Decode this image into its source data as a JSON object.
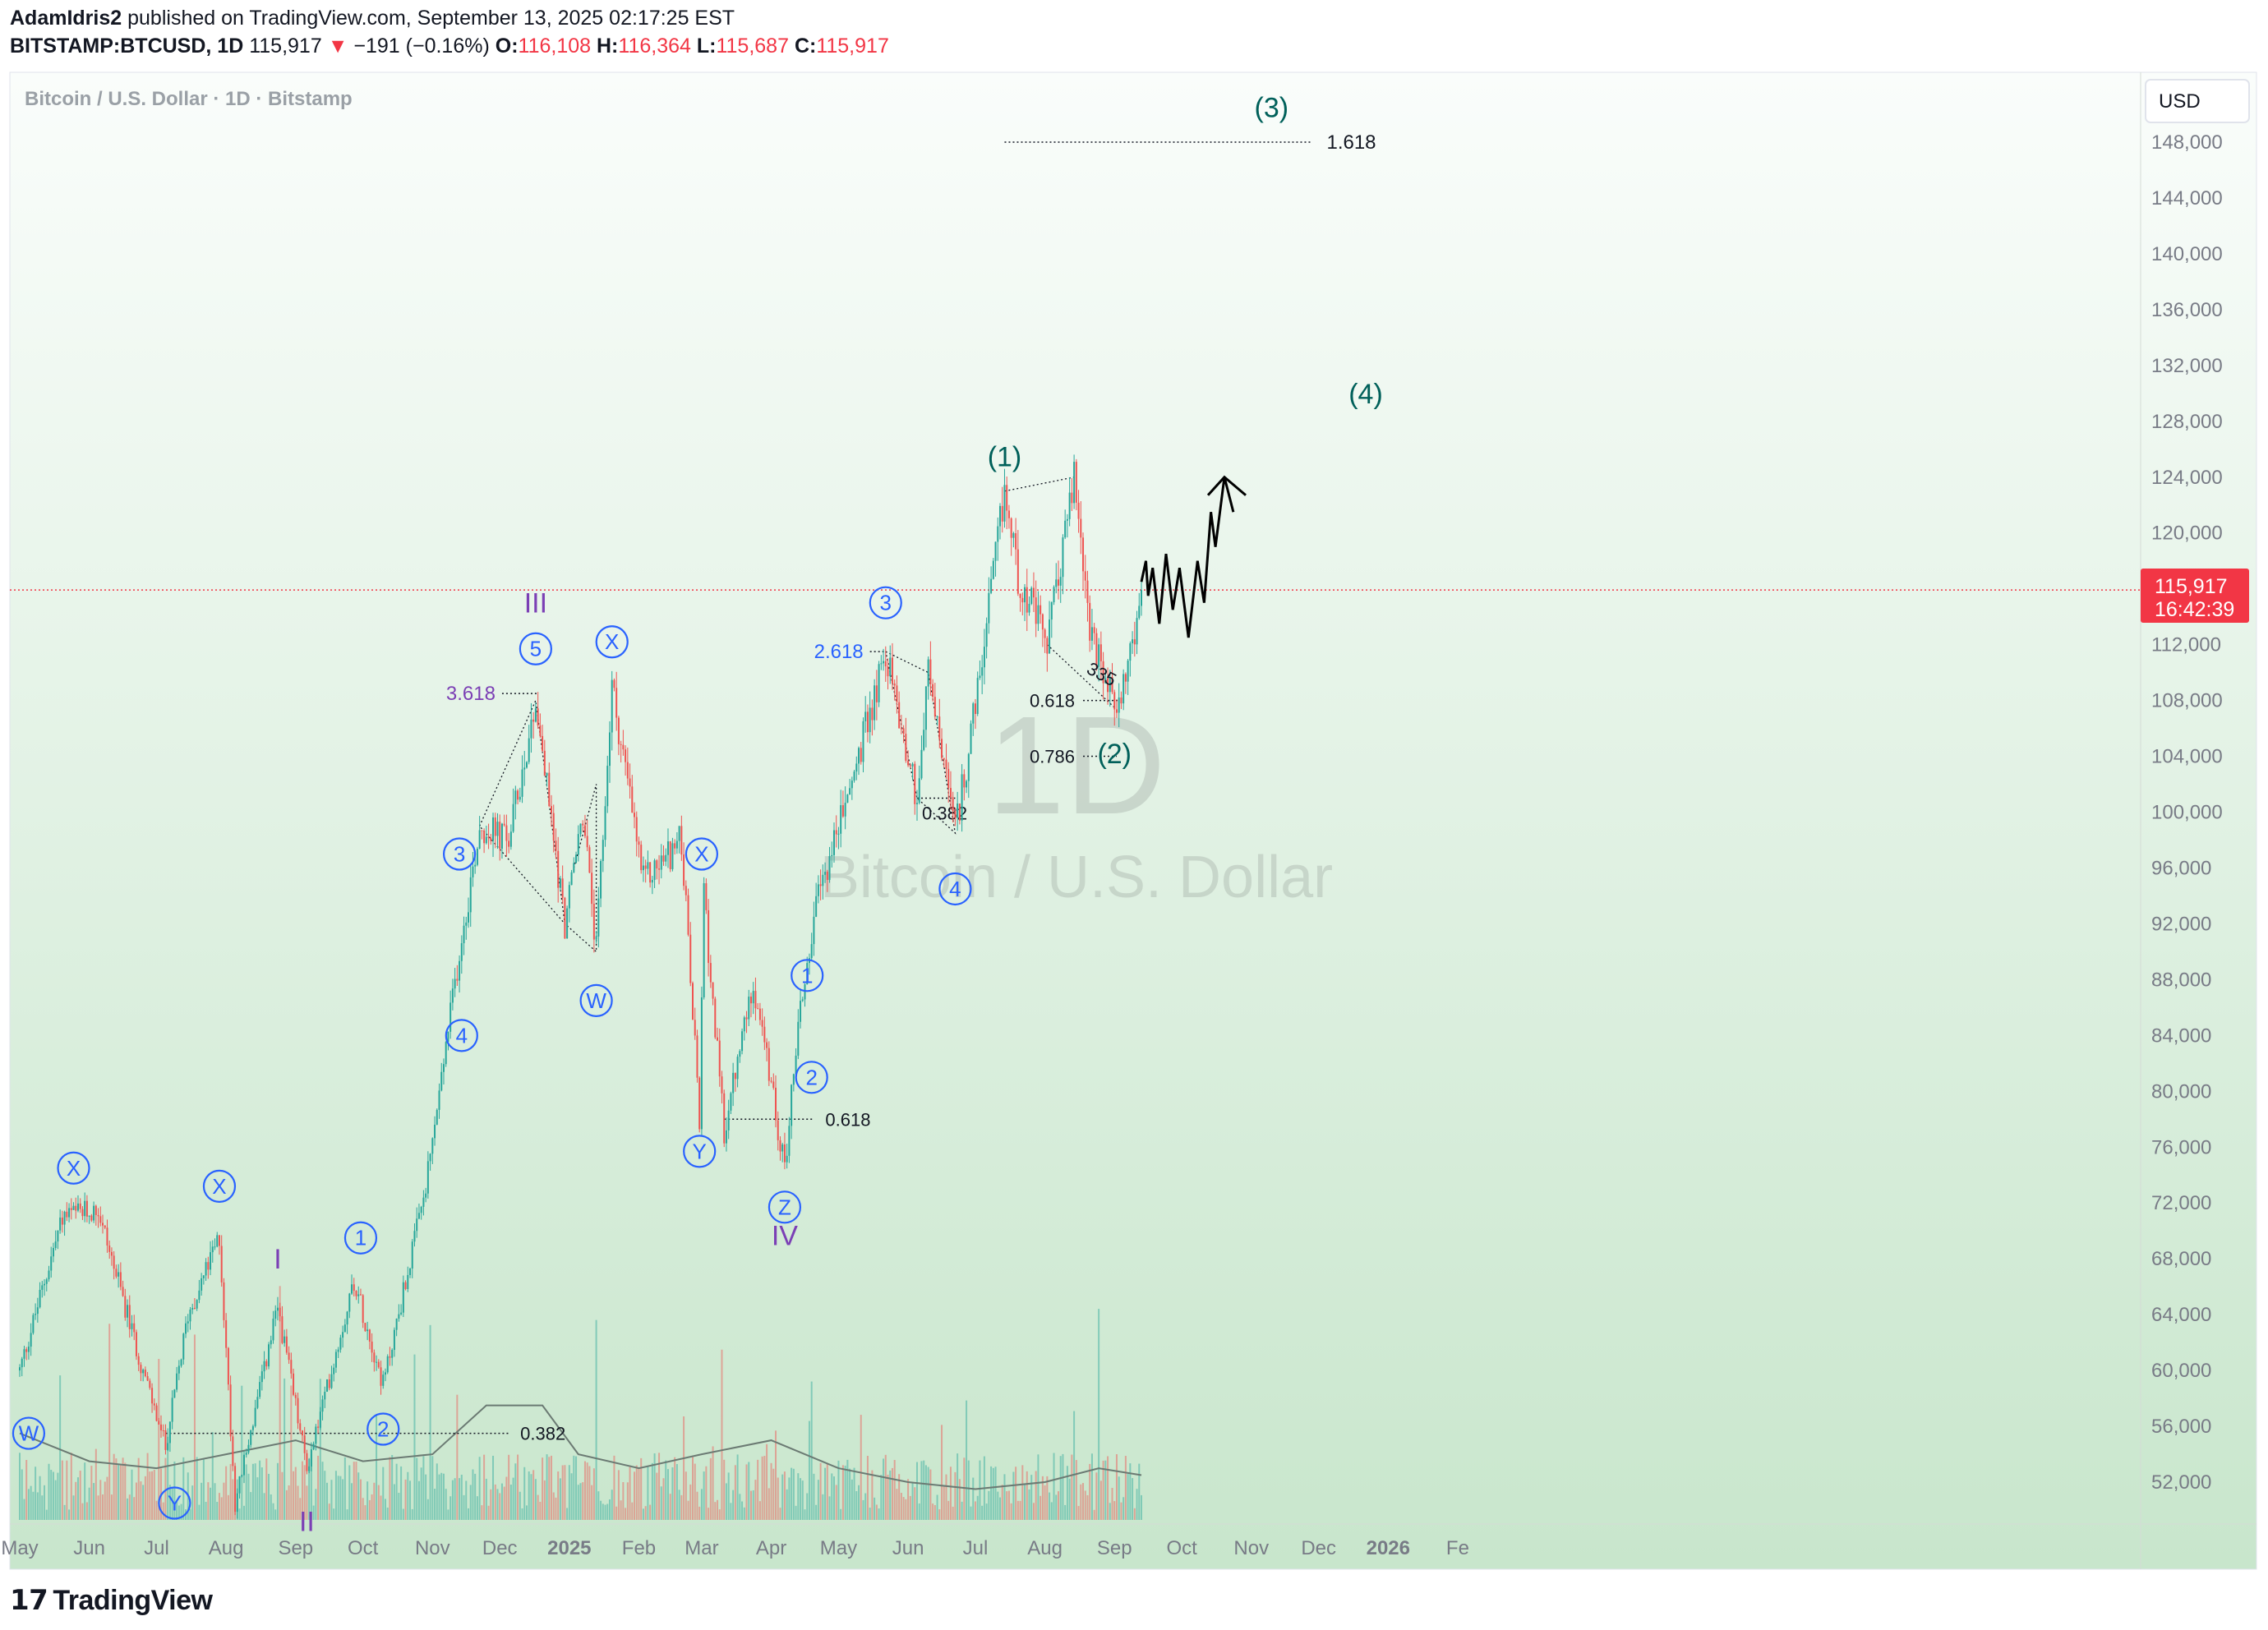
{
  "header": {
    "author": "AdamIdris2",
    "published_text": "published on TradingView.com, September 13, 2025 02:17:25 EST",
    "symbol": "BITSTAMP:BTCUSD, 1D",
    "last": "115,917",
    "change": "−191 (−0.16%)",
    "o_label": "O:",
    "o": "116,108",
    "h_label": "H:",
    "h": "116,364",
    "l_label": "L:",
    "l": "115,687",
    "c_label": "C:",
    "c": "115,917"
  },
  "pane": {
    "title": "Bitcoin / U.S. Dollar · 1D · Bitstamp",
    "currency": "USD",
    "watermark_interval": "1D",
    "watermark_name": "Bitcoin / U.S. Dollar"
  },
  "price_tag": {
    "price": "115,917",
    "countdown": "16:42:39"
  },
  "colors": {
    "up": "#26a69a",
    "down": "#ef5350",
    "wave_blue": "#2962ff",
    "wave_purple": "#7b3fb5",
    "wave_teal": "#00605a",
    "price_line": "#f23645",
    "volume_ma": "#6b7a73",
    "projection": "#000000"
  },
  "footer": {
    "brand": "TradingView",
    "logo_icon": "tradingview-logo-icon"
  },
  "chart_data": {
    "type": "candlestick",
    "interval": "1D",
    "y_range": [
      48000,
      150000
    ],
    "y_ticks": [
      "148,000",
      "144,000",
      "140,000",
      "136,000",
      "132,000",
      "128,000",
      "124,000",
      "120,000",
      "112,000",
      "108,000",
      "104,000",
      "100,000",
      "96,000",
      "92,000",
      "88,000",
      "84,000",
      "80,000",
      "76,000",
      "72,000",
      "68,000",
      "64,000",
      "60,000",
      "56,000",
      "52,000"
    ],
    "x_ticks": [
      {
        "label": "May",
        "date": "2024-05-01"
      },
      {
        "label": "Jun",
        "date": "2024-06-01"
      },
      {
        "label": "Jul",
        "date": "2024-07-01"
      },
      {
        "label": "Aug",
        "date": "2024-08-01"
      },
      {
        "label": "Sep",
        "date": "2024-09-01"
      },
      {
        "label": "Oct",
        "date": "2024-10-01"
      },
      {
        "label": "Nov",
        "date": "2024-11-01"
      },
      {
        "label": "Dec",
        "date": "2024-12-01"
      },
      {
        "label": "2025",
        "date": "2025-01-01"
      },
      {
        "label": "Feb",
        "date": "2025-02-01"
      },
      {
        "label": "Mar",
        "date": "2025-03-01"
      },
      {
        "label": "Apr",
        "date": "2025-04-01"
      },
      {
        "label": "May",
        "date": "2025-05-01"
      },
      {
        "label": "Jun",
        "date": "2025-06-01"
      },
      {
        "label": "Jul",
        "date": "2025-07-01"
      },
      {
        "label": "Aug",
        "date": "2025-08-01"
      },
      {
        "label": "Sep",
        "date": "2025-09-01"
      },
      {
        "label": "Oct",
        "date": "2025-10-01"
      },
      {
        "label": "Nov",
        "date": "2025-11-01"
      },
      {
        "label": "Dec",
        "date": "2025-12-01"
      },
      {
        "label": "2026",
        "date": "2026-01-01"
      },
      {
        "label": "Fe",
        "date": "2026-02-01"
      }
    ],
    "price_path": [
      [
        "2024-05-01",
        60000
      ],
      [
        "2024-05-20",
        71000
      ],
      [
        "2024-06-05",
        71500
      ],
      [
        "2024-06-24",
        60500
      ],
      [
        "2024-07-05",
        54500
      ],
      [
        "2024-07-15",
        64000
      ],
      [
        "2024-07-29",
        69500
      ],
      [
        "2024-08-05",
        50500
      ],
      [
        "2024-08-24",
        64500
      ],
      [
        "2024-09-06",
        53000
      ],
      [
        "2024-09-27",
        66500
      ],
      [
        "2024-10-10",
        59000
      ],
      [
        "2024-10-29",
        73000
      ],
      [
        "2024-11-13",
        90000
      ],
      [
        "2024-11-22",
        99000
      ],
      [
        "2024-12-05",
        98000
      ],
      [
        "2024-12-17",
        108000
      ],
      [
        "2024-12-30",
        92000
      ],
      [
        "2025-01-07",
        100000
      ],
      [
        "2025-01-13",
        90000
      ],
      [
        "2025-01-20",
        109000
      ],
      [
        "2025-02-03",
        95000
      ],
      [
        "2025-02-20",
        98000
      ],
      [
        "2025-02-28",
        78000
      ],
      [
        "2025-03-02",
        94000
      ],
      [
        "2025-03-11",
        77000
      ],
      [
        "2025-03-24",
        88000
      ],
      [
        "2025-04-07",
        74500
      ],
      [
        "2025-04-13",
        85000
      ],
      [
        "2025-04-22",
        94000
      ],
      [
        "2025-05-10",
        104000
      ],
      [
        "2025-05-22",
        111500
      ],
      [
        "2025-06-05",
        101000
      ],
      [
        "2025-06-10",
        110000
      ],
      [
        "2025-06-22",
        98500
      ],
      [
        "2025-07-03",
        109500
      ],
      [
        "2025-07-14",
        123000
      ],
      [
        "2025-07-20",
        117000
      ],
      [
        "2025-08-02",
        112000
      ],
      [
        "2025-08-14",
        124000
      ],
      [
        "2025-08-22",
        112000
      ],
      [
        "2025-09-01",
        107500
      ],
      [
        "2025-09-08",
        111000
      ],
      [
        "2025-09-13",
        115917
      ]
    ],
    "volume_ma_path": [
      [
        "2024-05-01",
        55500
      ],
      [
        "2024-06-01",
        53500
      ],
      [
        "2024-07-01",
        53000
      ],
      [
        "2024-08-01",
        54000
      ],
      [
        "2024-09-01",
        55000
      ],
      [
        "2024-10-01",
        53500
      ],
      [
        "2024-11-01",
        54000
      ],
      [
        "2024-11-25",
        57500
      ],
      [
        "2024-12-20",
        57500
      ],
      [
        "2025-01-05",
        54000
      ],
      [
        "2025-02-01",
        53000
      ],
      [
        "2025-03-01",
        54000
      ],
      [
        "2025-04-01",
        55000
      ],
      [
        "2025-05-01",
        53000
      ],
      [
        "2025-06-01",
        52000
      ],
      [
        "2025-07-01",
        51500
      ],
      [
        "2025-08-01",
        52000
      ],
      [
        "2025-08-25",
        53000
      ],
      [
        "2025-09-13",
        52500
      ]
    ],
    "projection_path": [
      [
        "2025-09-13",
        116500
      ],
      [
        "2025-09-15",
        118000
      ],
      [
        "2025-09-16",
        115500
      ],
      [
        "2025-09-18",
        117500
      ],
      [
        "2025-09-21",
        113500
      ],
      [
        "2025-09-24",
        118500
      ],
      [
        "2025-09-27",
        114500
      ],
      [
        "2025-09-30",
        117500
      ],
      [
        "2025-10-04",
        112500
      ],
      [
        "2025-10-08",
        118000
      ],
      [
        "2025-10-11",
        115000
      ],
      [
        "2025-10-14",
        121500
      ],
      [
        "2025-10-16",
        119000
      ],
      [
        "2025-10-20",
        124000
      ],
      [
        "2025-10-24",
        121500
      ]
    ],
    "fib_levels": [
      {
        "label": "1.618",
        "price": 148000,
        "from": "2025-07-14",
        "to": "2025-11-28"
      },
      {
        "label": "3.618",
        "price": 108500,
        "from": "2024-12-02",
        "to": "2024-12-18"
      },
      {
        "label": "2.618",
        "price": 111500,
        "from": "2025-05-15",
        "to": "2025-05-22"
      },
      {
        "label": "0.618",
        "price": 108000,
        "from": "2025-08-18",
        "to": "2025-09-03"
      },
      {
        "label": "0.786",
        "price": 104000,
        "from": "2025-08-18",
        "to": "2025-09-02"
      },
      {
        "label": "0.382",
        "price": 101000,
        "from": "2025-06-05",
        "to": "2025-06-22"
      },
      {
        "label": "0.618",
        "price": 78000,
        "from": "2025-03-11",
        "to": "2025-04-20"
      },
      {
        "label": "0.382",
        "price": 55500,
        "from": "2024-07-05",
        "to": "2024-12-05"
      }
    ],
    "wave_labels": [
      {
        "text": "W",
        "style": "circle-blue",
        "date": "2024-05-05",
        "price": 55500
      },
      {
        "text": "X",
        "style": "circle-blue",
        "date": "2024-05-25",
        "price": 74500
      },
      {
        "text": "Y",
        "style": "circle-blue",
        "date": "2024-07-09",
        "price": 50500
      },
      {
        "text": "X",
        "style": "circle-blue",
        "date": "2024-07-29",
        "price": 73200
      },
      {
        "text": "I",
        "style": "roman-purple",
        "date": "2024-08-24",
        "price": 68000
      },
      {
        "text": "II",
        "style": "roman-purple",
        "date": "2024-09-06",
        "price": 49200
      },
      {
        "text": "1",
        "style": "circle-blue",
        "date": "2024-09-30",
        "price": 69500
      },
      {
        "text": "2",
        "style": "circle-blue",
        "date": "2024-10-10",
        "price": 55800
      },
      {
        "text": "3",
        "style": "circle-blue",
        "date": "2024-11-13",
        "price": 97000
      },
      {
        "text": "4",
        "style": "circle-blue",
        "date": "2024-11-14",
        "price": 84000
      },
      {
        "text": "III",
        "style": "roman-purple",
        "date": "2024-12-17",
        "price": 115000
      },
      {
        "text": "5",
        "style": "circle-blue",
        "date": "2024-12-17",
        "price": 111700
      },
      {
        "text": "W",
        "style": "circle-blue",
        "date": "2025-01-13",
        "price": 86500
      },
      {
        "text": "X",
        "style": "circle-blue",
        "date": "2025-01-20",
        "price": 112200
      },
      {
        "text": "X",
        "style": "circle-blue",
        "date": "2025-03-01",
        "price": 97000
      },
      {
        "text": "Y",
        "style": "circle-blue",
        "date": "2025-02-28",
        "price": 75700
      },
      {
        "text": "Z",
        "style": "circle-blue",
        "date": "2025-04-07",
        "price": 71700
      },
      {
        "text": "IV",
        "style": "roman-purple",
        "date": "2025-04-07",
        "price": 69700
      },
      {
        "text": "1",
        "style": "circle-blue",
        "date": "2025-04-17",
        "price": 88300
      },
      {
        "text": "2",
        "style": "circle-blue",
        "date": "2025-04-19",
        "price": 81000
      },
      {
        "text": "3",
        "style": "circle-blue",
        "date": "2025-05-22",
        "price": 115000
      },
      {
        "text": "4",
        "style": "circle-blue",
        "date": "2025-06-22",
        "price": 94500
      },
      {
        "text": "(1)",
        "style": "paren-teal",
        "date": "2025-07-14",
        "price": 125500
      },
      {
        "text": "(2)",
        "style": "paren-teal",
        "date": "2025-09-01",
        "price": 104200
      },
      {
        "text": "(3)",
        "style": "paren-teal",
        "date": "2025-11-10",
        "price": 150500
      },
      {
        "text": "(4)",
        "style": "paren-teal",
        "date": "2025-12-22",
        "price": 130000
      }
    ],
    "annotations": [
      {
        "text": "335",
        "date": "2025-08-25",
        "price": 109500
      }
    ],
    "last_price": 115917,
    "title": "Bitcoin / U.S. Dollar · 1D · Bitstamp"
  }
}
